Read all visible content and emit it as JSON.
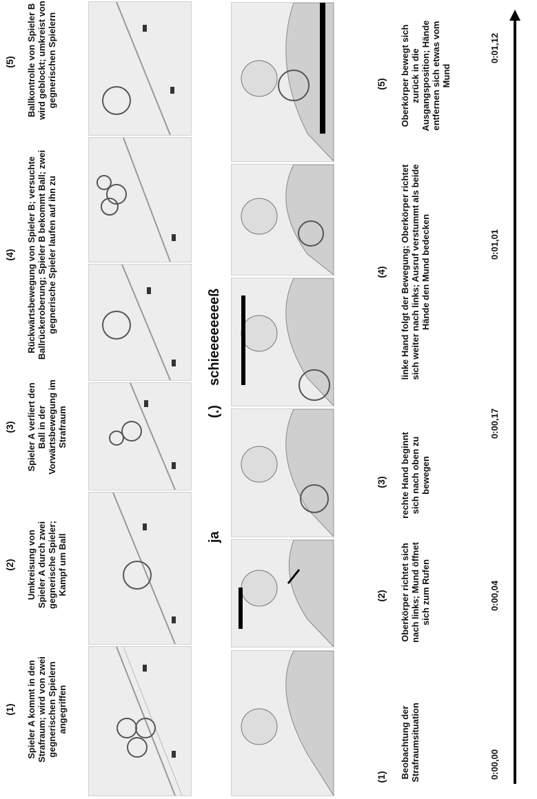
{
  "top_row": {
    "numbers": [
      "(1)",
      "(2)",
      "(3)",
      "(4)",
      "(5)"
    ],
    "captions": [
      "Spieler A kommt in den Strafraum; wird von zwei gegnerischen Spielern angegriffen",
      "Umkreisung von Spieler A durch zwei gegnerische Spieler; Kampf um Ball",
      "Spieler A verliert den Ball in der Vorwärtsbewegung im Strafraum",
      "Rückwärtsbewegung von Spieler B; versuchte Ballrückeroberung; Spieler B bekommt Ball; zwei gegnerische Spieler laufen auf ihn zu",
      "Ballkontrolle von Spieler B wird geblockt; umkreist von gegnerischen Spielern"
    ]
  },
  "speech": {
    "ja": "ja",
    "pause": "(.)",
    "word": "schieeeeeeeeß"
  },
  "bottom_row": {
    "numbers": [
      "(1)",
      "(2)",
      "(3)",
      "(4)",
      "(5)"
    ],
    "captions": [
      "Beobachtung der Strafraumsituation",
      "Oberkörper richtet sich nach links; Mund öffnet sich zum Rufen",
      "rechte Hand beginnt sich nach oben zu bewegen",
      "linke Hand folgt der Bewegung; Oberkörper richtet sich weiter nach links; Ausruf verstummt als beide Hände den Mund bedecken",
      "Oberkörper bewegt sich zurück in die Ausgangsposition; Hände entfernen sich etwas vom Mund"
    ]
  },
  "timeline": {
    "labels": [
      "0:00,00",
      "0:00,04",
      "0:00,17",
      "0:01,01",
      "0:01,12"
    ]
  }
}
